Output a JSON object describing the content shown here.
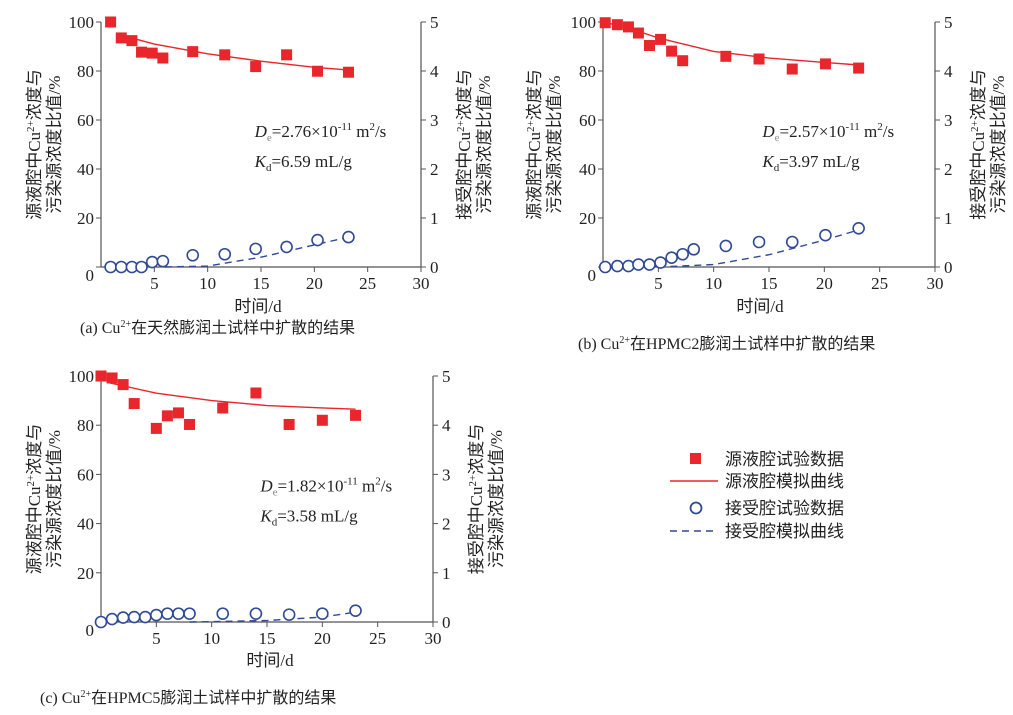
{
  "legend": {
    "source_exp": "源液腔试验数据",
    "source_fit": "源液腔模拟曲线",
    "receive_exp": "接受腔试验数据",
    "receive_fit": "接受腔模拟曲线"
  },
  "colors": {
    "source": "#e8262b",
    "receive": "#2f4a94",
    "axis": "#555555"
  },
  "chart_data": [
    {
      "type": "scatter",
      "caption": {
        "prefix": "(a) Cu",
        "sup": "2+",
        "rest": "在天然膨润土试样中扩散的结果"
      },
      "xlabel": "时间/d",
      "ylabel_left": {
        "l1a": "源液腔中Cu",
        "l1sup": "2+",
        "l1b": "浓度与",
        "l2": "污染源浓度比值/%"
      },
      "ylabel_right": {
        "l1a": "接受腔中Cu",
        "l1sup": "2+",
        "l1b": "浓度与",
        "l2": "污染源浓度比值/%"
      },
      "xlim": [
        0,
        30
      ],
      "ylim_left": [
        0,
        100
      ],
      "ylim_right": [
        0,
        5
      ],
      "xticks": [
        "5",
        "10",
        "15",
        "20",
        "25",
        "30"
      ],
      "yticks_left": [
        "0",
        "20",
        "40",
        "60",
        "80",
        "100"
      ],
      "yticks_right": [
        "0",
        "1",
        "2",
        "3",
        "4",
        "5"
      ],
      "annotation": {
        "De_sym": "D",
        "De_sub": "e",
        "De_val": "=2.76×10",
        "De_exp": "-11",
        "De_unit": " m",
        "De_unit_sup": "2",
        "De_unit_tail": "/s",
        "Kd_sym": "K",
        "Kd_sub": "d",
        "Kd_val": "=6.59 mL/g"
      },
      "source_exp": {
        "x": [
          0.9,
          1.9,
          2.9,
          3.8,
          4.8,
          5.8,
          8.6,
          11.6,
          14.5,
          17.4,
          20.3,
          23.2
        ],
        "y": [
          100,
          93.5,
          92.4,
          87.7,
          87.3,
          85.3,
          87.9,
          86.6,
          81.8,
          86.6,
          79.9,
          79.5
        ]
      },
      "source_fit": {
        "x": [
          2,
          5,
          10,
          15,
          20,
          23
        ],
        "y": [
          94.5,
          91,
          87,
          84,
          81.5,
          80.5
        ]
      },
      "receive_exp": {
        "x": [
          0.9,
          1.9,
          2.9,
          3.8,
          4.8,
          5.8,
          8.6,
          11.6,
          14.5,
          17.4,
          20.3,
          23.2
        ],
        "y": [
          0,
          0,
          0,
          0,
          0.1,
          0.12,
          0.24,
          0.26,
          0.37,
          0.41,
          0.55,
          0.61
        ]
      },
      "receive_fit": {
        "x": [
          6,
          10,
          15,
          20,
          23
        ],
        "y": [
          0,
          0.02,
          0.2,
          0.45,
          0.6
        ]
      }
    },
    {
      "type": "scatter",
      "caption": {
        "prefix": "(b) Cu",
        "sup": "2+",
        "rest": "在HPMC2膨润土试样中扩散的结果"
      },
      "xlabel": "时间/d",
      "ylabel_left": {
        "l1a": "源液腔中Cu",
        "l1sup": "2+",
        "l1b": "浓度与",
        "l2": "污染源浓度比值/%"
      },
      "ylabel_right": {
        "l1a": "接受腔中Cu",
        "l1sup": "2+",
        "l1b": "浓度与",
        "l2": "污染源浓度比值/%"
      },
      "xlim": [
        0,
        30
      ],
      "ylim_left": [
        0,
        100
      ],
      "ylim_right": [
        0,
        5
      ],
      "xticks": [
        "5",
        "10",
        "15",
        "20",
        "25",
        "30"
      ],
      "yticks_left": [
        "0",
        "20",
        "40",
        "60",
        "80",
        "100"
      ],
      "yticks_right": [
        "0",
        "1",
        "2",
        "3",
        "4",
        "5"
      ],
      "annotation": {
        "De_sym": "D",
        "De_sub": "e",
        "De_val": "=2.57×10",
        "De_exp": "-11",
        "De_unit": " m",
        "De_unit_sup": "2",
        "De_unit_tail": "/s",
        "Kd_sym": "K",
        "Kd_sub": "d",
        "Kd_val": "=3.97 mL/g"
      },
      "source_exp": {
        "x": [
          0.2,
          1.3,
          2.3,
          3.2,
          4.2,
          5.2,
          6.2,
          7.2,
          11.1,
          14.1,
          17.1,
          20.1,
          23.1
        ],
        "y": [
          99.7,
          98.9,
          98,
          95.5,
          90.4,
          92.9,
          88.1,
          84.2,
          86,
          84.9,
          80.8,
          82.9,
          81.2
        ]
      },
      "source_fit": {
        "x": [
          0,
          2,
          5,
          10,
          15,
          20,
          23
        ],
        "y": [
          100,
          98,
          93.5,
          88,
          85.3,
          83.5,
          82.5
        ]
      },
      "receive_exp": {
        "x": [
          0.2,
          1.3,
          2.3,
          3.2,
          4.2,
          5.2,
          6.2,
          7.2,
          8.2,
          11.1,
          14.1,
          17.1,
          20.1,
          23.1
        ],
        "y": [
          0,
          0.02,
          0.02,
          0.05,
          0.05,
          0.09,
          0.19,
          0.26,
          0.36,
          0.43,
          0.51,
          0.51,
          0.65,
          0.79
        ]
      },
      "receive_fit": {
        "x": [
          5,
          10,
          15,
          20,
          23
        ],
        "y": [
          0,
          0.05,
          0.25,
          0.55,
          0.75
        ]
      }
    },
    {
      "type": "scatter",
      "caption": {
        "prefix": "(c) Cu",
        "sup": "2+",
        "rest": "在HPMC5膨润土试样中扩散的结果"
      },
      "xlabel": "时间/d",
      "ylabel_left": {
        "l1a": "源液腔中Cu",
        "l1sup": "2+",
        "l1b": "浓度与",
        "l2": "污染源浓度比值/%"
      },
      "ylabel_right": {
        "l1a": "接受腔中Cu",
        "l1sup": "2+",
        "l1b": "浓度与",
        "l2": "污染源浓度比值/%"
      },
      "xlim": [
        0,
        30
      ],
      "ylim_left": [
        0,
        100
      ],
      "ylim_right": [
        0,
        5
      ],
      "xticks": [
        "5",
        "10",
        "15",
        "20",
        "25",
        "30"
      ],
      "yticks_left": [
        "0",
        "20",
        "40",
        "60",
        "80",
        "100"
      ],
      "yticks_right": [
        "0",
        "1",
        "2",
        "3",
        "4",
        "5"
      ],
      "annotation": {
        "De_sym": "D",
        "De_sub": "e",
        "De_val": "=1.82×10",
        "De_exp": "-11",
        "De_unit": " m",
        "De_unit_sup": "2",
        "De_unit_tail": "/s",
        "Kd_sym": "K",
        "Kd_sub": "d",
        "Kd_val": "=3.58 mL/g"
      },
      "source_exp": {
        "x": [
          0,
          1,
          2,
          3,
          5,
          6,
          7,
          8,
          11,
          14,
          17,
          20,
          23
        ],
        "y": [
          100,
          99.2,
          96.5,
          88.8,
          78.7,
          83.8,
          85,
          80.3,
          87,
          93.1,
          80.3,
          82,
          84
        ]
      },
      "source_fit": {
        "x": [
          0.5,
          2,
          5,
          10,
          15,
          20,
          23
        ],
        "y": [
          97.5,
          96,
          93,
          90,
          88,
          87,
          86.5
        ]
      },
      "receive_exp": {
        "x": [
          0,
          1,
          2,
          3,
          4,
          5,
          6,
          7,
          8,
          11,
          14,
          17,
          20,
          23
        ],
        "y": [
          0,
          0.06,
          0.09,
          0.1,
          0.1,
          0.14,
          0.17,
          0.17,
          0.17,
          0.17,
          0.17,
          0.15,
          0.17,
          0.23
        ]
      },
      "receive_fit": {
        "x": [
          8,
          15,
          20,
          23
        ],
        "y": [
          0,
          0.03,
          0.1,
          0.2
        ]
      }
    }
  ]
}
